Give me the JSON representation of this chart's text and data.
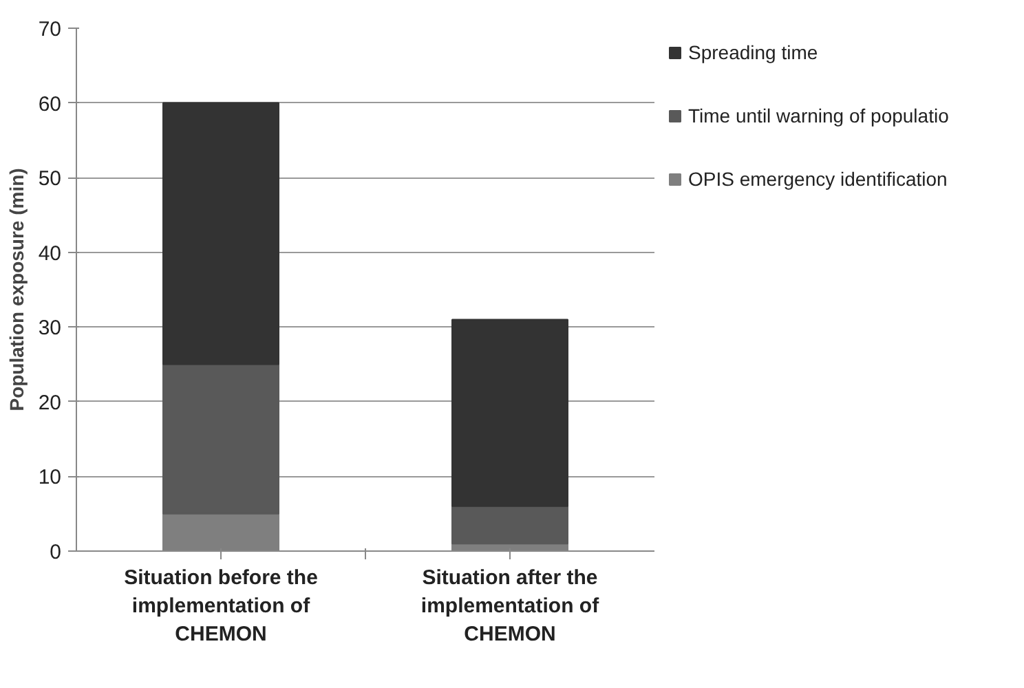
{
  "chart_data": {
    "type": "bar",
    "stacked": true,
    "ylabel": "Population exposure (min)",
    "categories": [
      "Situation before the implementation of CHEMON",
      "Situation after the implementation of CHEMON"
    ],
    "series": [
      {
        "name": "OPIS emergency identification",
        "color": "#7f7f7f",
        "values": [
          5,
          1
        ]
      },
      {
        "name": "Time until warning of populatio",
        "color": "#595959",
        "values": [
          20,
          5
        ]
      },
      {
        "name": "Spreading time",
        "color": "#333333",
        "values": [
          35,
          25
        ]
      }
    ],
    "ylim": [
      0,
      70
    ],
    "yticks": [
      0,
      10,
      20,
      30,
      40,
      50,
      60,
      70
    ],
    "grid": "y",
    "legend": "right"
  }
}
